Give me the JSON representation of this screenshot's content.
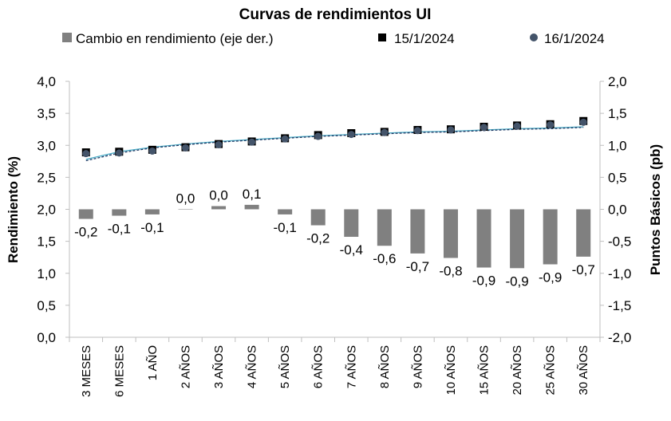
{
  "chart_data": {
    "type": "bar",
    "title": "Curvas de rendimientos UI",
    "ylabel": "Rendimiento (%)",
    "y2label": "Puntos Básicos (pb)",
    "xlabel": "",
    "ylim": [
      0,
      4
    ],
    "y_ticks": [
      "0,0",
      "0,5",
      "1,0",
      "1,5",
      "2,0",
      "2,5",
      "3,0",
      "3,5",
      "4,0"
    ],
    "y2lim": [
      -2,
      2
    ],
    "y2_ticks": [
      "-2,0",
      "-1,5",
      "-1,0",
      "-0,5",
      "0,0",
      "0,5",
      "1,0",
      "1,5",
      "2,0"
    ],
    "categories": [
      "3 MESES",
      "6 MESES",
      "1 AÑO",
      "2 AÑOS",
      "3 AÑOS",
      "4 AÑOS",
      "5 AÑOS",
      "6 AÑOS",
      "7 AÑOS",
      "8 AÑOS",
      "9 AÑOS",
      "10 AÑOS",
      "15 AÑOS",
      "20 AÑOS",
      "25 AÑOS",
      "30 AÑOS"
    ],
    "series": [
      {
        "name": "Cambio en rendimiento (eje der.)",
        "type": "bar",
        "axis": "right",
        "color": "#808080",
        "values": [
          -0.15,
          -0.1,
          -0.08,
          0.0,
          0.05,
          0.07,
          -0.08,
          -0.25,
          -0.43,
          -0.57,
          -0.69,
          -0.76,
          -0.91,
          -0.92,
          -0.86,
          -0.74
        ],
        "labels": [
          "-0,2",
          "-0,1",
          "-0,1",
          "0,0",
          "0,0",
          "0,1",
          "-0,1",
          "-0,2",
          "-0,4",
          "-0,6",
          "-0,7",
          "-0,8",
          "-0,9",
          "-0,9",
          "-0,9",
          "-0,7"
        ]
      },
      {
        "name": "15/1/2024",
        "type": "scatter",
        "axis": "left",
        "marker": "square",
        "color": "#000000",
        "values": [
          2.89,
          2.9,
          2.93,
          2.97,
          3.02,
          3.06,
          3.11,
          3.16,
          3.19,
          3.21,
          3.24,
          3.25,
          3.29,
          3.31,
          3.33,
          3.38
        ]
      },
      {
        "name": "16/1/2024",
        "type": "scatter",
        "axis": "left",
        "marker": "circle",
        "color": "#44546a",
        "values": [
          2.87,
          2.88,
          2.91,
          2.96,
          3.01,
          3.05,
          3.1,
          3.14,
          3.17,
          3.2,
          3.23,
          3.24,
          3.28,
          3.3,
          3.32,
          3.36
        ]
      }
    ],
    "trendlines": [
      {
        "color": "#4bacc6",
        "values": [
          2.78,
          2.9,
          2.97,
          3.02,
          3.06,
          3.09,
          3.12,
          3.15,
          3.17,
          3.19,
          3.21,
          3.22,
          3.24,
          3.26,
          3.27,
          3.29
        ]
      },
      {
        "color": "#1f3864",
        "dashed": true,
        "values": [
          2.76,
          2.88,
          2.96,
          3.01,
          3.05,
          3.08,
          3.11,
          3.14,
          3.16,
          3.18,
          3.2,
          3.21,
          3.23,
          3.25,
          3.26,
          3.28
        ]
      }
    ],
    "legend_position": "top",
    "grid": false
  }
}
